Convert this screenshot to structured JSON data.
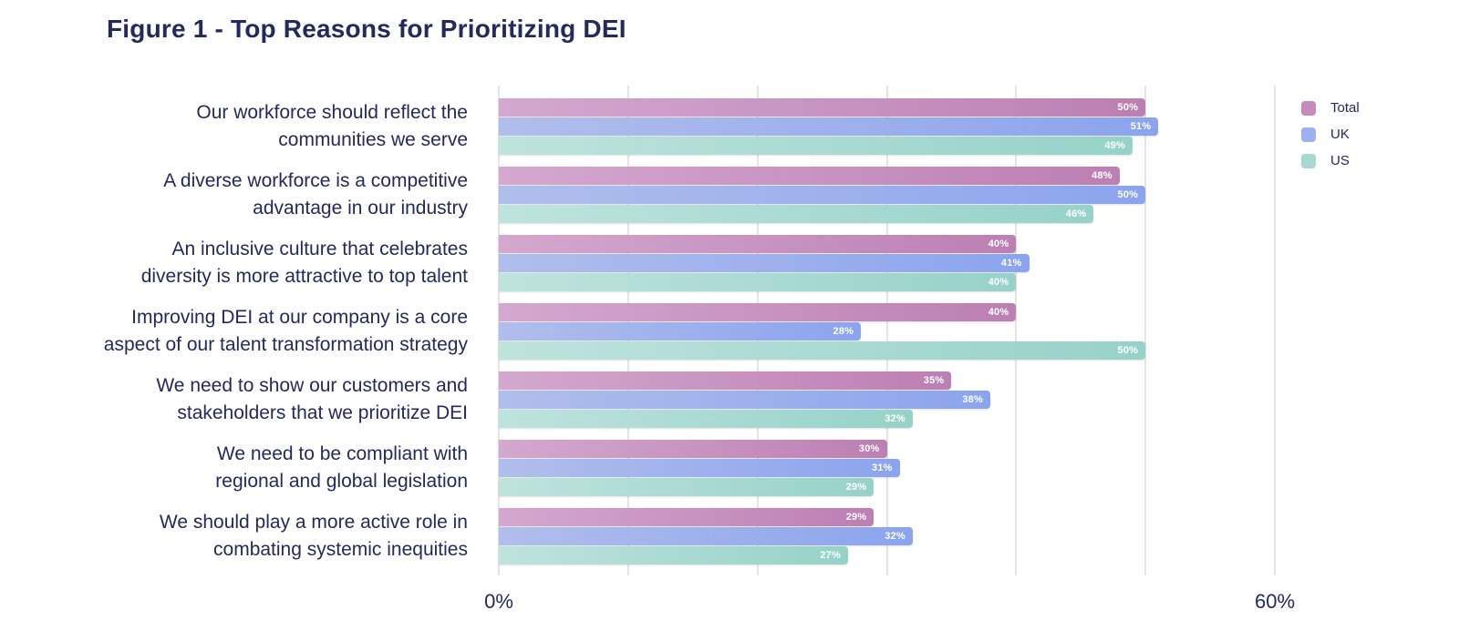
{
  "title": "Figure 1 - Top Reasons for Prioritizing DEI",
  "colors": {
    "text_navy": "#232a5c",
    "gridline": "#e5e5e5",
    "value_label": "#ffffff",
    "series": {
      "Total": {
        "from": "#d4a8cf",
        "to": "#bc7fb3",
        "legend": "#c68cbd"
      },
      "UK": {
        "from": "#b1beec",
        "to": "#8ba4ee",
        "legend": "#9db0f0"
      },
      "US": {
        "from": "#bfe3dd",
        "to": "#96d2c9",
        "legend": "#a5d9d1"
      }
    }
  },
  "chart_data": {
    "type": "bar",
    "orientation": "horizontal",
    "title": "Figure 1 - Top Reasons for Prioritizing DEI",
    "categories": [
      "Our workforce should reflect the communities we serve",
      "A diverse workforce is a competitive advantage in our industry",
      "An inclusive culture that celebrates diversity is more attractive to top talent",
      "Improving DEI at our company is a core aspect of our talent transformation strategy",
      "We need to show our customers and stakeholders that we prioritize DEI",
      "We need to be compliant with regional and global legislation",
      "We should play a more active role in combating systemic inequities"
    ],
    "categories_wrapped": [
      [
        "Our workforce should reflect the",
        "communities we serve"
      ],
      [
        "A diverse workforce is a competitive",
        "advantage in our industry"
      ],
      [
        "An inclusive culture that celebrates",
        "diversity is more attractive to top talent"
      ],
      [
        "Improving DEI at our company is a core",
        "aspect of our talent transformation strategy"
      ],
      [
        "We need to show our customers and",
        "stakeholders that we prioritize DEI"
      ],
      [
        "We need to be compliant with",
        "regional and global legislation"
      ],
      [
        "We should play a more active role in",
        "combating systemic inequities"
      ]
    ],
    "series": [
      {
        "name": "Total",
        "values": [
          50,
          48,
          40,
          40,
          35,
          30,
          29
        ]
      },
      {
        "name": "UK",
        "values": [
          51,
          50,
          41,
          28,
          38,
          31,
          32
        ]
      },
      {
        "name": "US",
        "values": [
          49,
          46,
          40,
          50,
          32,
          29,
          27
        ]
      }
    ],
    "value_suffix": "%",
    "xlim": [
      0,
      60
    ],
    "x_ticks": [
      "0%",
      "60%"
    ],
    "gridlines_percent": [
      0,
      10,
      20,
      30,
      40,
      50,
      60
    ],
    "grid": "vertical",
    "legend_position": "right",
    "legend": [
      "Total",
      "UK",
      "US"
    ]
  }
}
